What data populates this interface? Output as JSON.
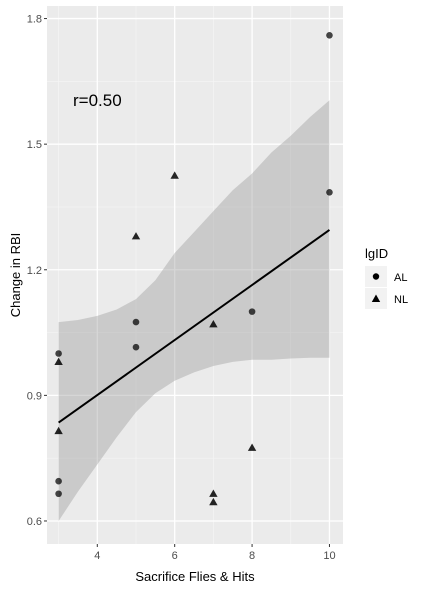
{
  "chart_data": {
    "type": "scatter",
    "xlabel": "Sacrifice Flies & Hits",
    "ylabel": "Change in RBI",
    "xlim": [
      2.7,
      10.35
    ],
    "ylim": [
      0.545,
      1.83
    ],
    "x_ticks": [
      4,
      6,
      8,
      10
    ],
    "y_ticks": [
      0.6,
      0.9,
      1.2,
      1.5,
      1.8
    ],
    "x_tick_labels": [
      "4",
      "6",
      "8",
      "10"
    ],
    "y_tick_labels": [
      "0.6",
      "0.9",
      "1.2",
      "1.5",
      "1.8"
    ],
    "grid": true,
    "annotation": "r=0.50",
    "legend": {
      "title": "lgID",
      "position": "right",
      "entries": [
        {
          "label": "AL",
          "shape": "circle"
        },
        {
          "label": "NL",
          "shape": "triangle"
        }
      ]
    },
    "series": [
      {
        "name": "AL",
        "shape": "circle",
        "points": [
          {
            "x": 3,
            "y": 1.0
          },
          {
            "x": 3,
            "y": 0.695
          },
          {
            "x": 3,
            "y": 0.665
          },
          {
            "x": 5,
            "y": 1.075
          },
          {
            "x": 5,
            "y": 1.015
          },
          {
            "x": 8,
            "y": 1.1
          },
          {
            "x": 10,
            "y": 1.76
          },
          {
            "x": 10,
            "y": 1.385
          }
        ]
      },
      {
        "name": "NL",
        "shape": "triangle",
        "points": [
          {
            "x": 3,
            "y": 0.98
          },
          {
            "x": 3,
            "y": 0.815
          },
          {
            "x": 5,
            "y": 1.28
          },
          {
            "x": 6,
            "y": 1.425
          },
          {
            "x": 7,
            "y": 1.07
          },
          {
            "x": 7,
            "y": 0.665
          },
          {
            "x": 7,
            "y": 0.645
          },
          {
            "x": 8,
            "y": 0.775
          }
        ]
      }
    ],
    "regression": {
      "x": [
        3,
        10
      ],
      "y": [
        0.835,
        1.295
      ]
    },
    "confidence_band": {
      "x": [
        3,
        3.5,
        4,
        4.5,
        5,
        5.5,
        6,
        6.5,
        7,
        7.5,
        8,
        8.5,
        9,
        9.5,
        10
      ],
      "lower": [
        0.6,
        0.67,
        0.735,
        0.8,
        0.86,
        0.905,
        0.935,
        0.955,
        0.97,
        0.98,
        0.985,
        0.985,
        0.988,
        0.99,
        0.99
      ],
      "upper": [
        1.075,
        1.08,
        1.09,
        1.105,
        1.13,
        1.175,
        1.24,
        1.29,
        1.34,
        1.39,
        1.43,
        1.48,
        1.52,
        1.565,
        1.605
      ]
    }
  }
}
